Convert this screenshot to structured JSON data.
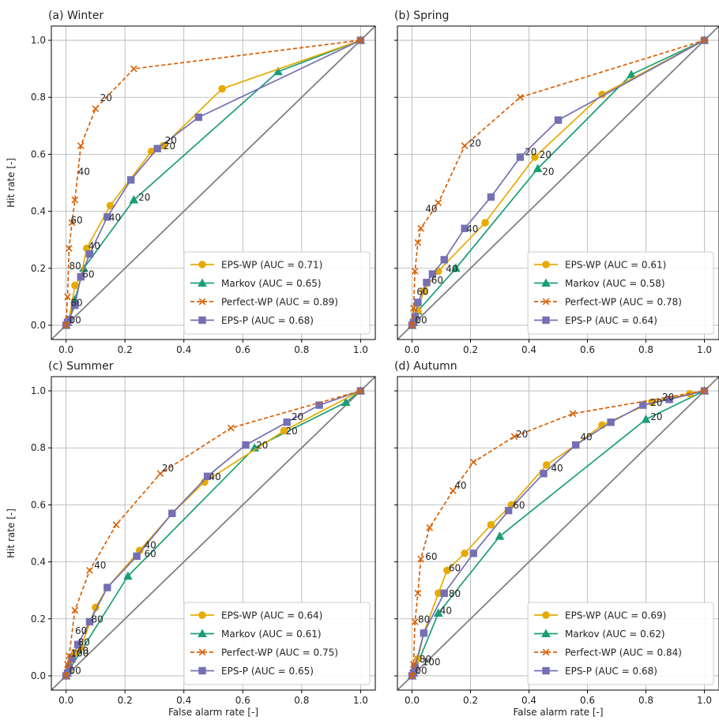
{
  "colors": {
    "EPS-WP": "#e6ab02",
    "Markov": "#1b9e77",
    "Perfect-WP": "#d95f02",
    "EPS-P": "#7570b3",
    "diagonal": "#808080",
    "grid": "#b0b0b0"
  },
  "chart_data": [
    {
      "type": "line",
      "title": "(a) Winter",
      "xlabel": "",
      "ylabel": "Hit rate [-]",
      "xlim": [
        -0.05,
        1.05
      ],
      "ylim": [
        -0.05,
        1.05
      ],
      "xticks": [
        "0.0",
        "0.2",
        "0.4",
        "0.6",
        "0.8",
        "1.0"
      ],
      "yticks": [
        "0.0",
        "0.2",
        "0.4",
        "0.6",
        "0.8",
        "1.0"
      ],
      "grid": true,
      "legend_position": "bottom-right",
      "series": [
        {
          "name": "EPS-WP (AUC = 0.71)",
          "marker": "circle",
          "x": [
            0,
            0.005,
            0.01,
            0.03,
            0.05,
            0.07,
            0.15,
            0.29,
            0.33,
            0.53,
            1.0
          ],
          "y": [
            0,
            0.01,
            0.02,
            0.14,
            0.17,
            0.27,
            0.42,
            0.61,
            0.63,
            0.83,
            1.0
          ]
        },
        {
          "name": "Markov (AUC = 0.65)",
          "marker": "triangle",
          "x": [
            0,
            0.005,
            0.01,
            0.03,
            0.06,
            0.23,
            0.72,
            1.0
          ],
          "y": [
            0,
            0.01,
            0.02,
            0.09,
            0.2,
            0.44,
            0.89,
            1.0
          ]
        },
        {
          "name": "Perfect-WP (AUC = 0.89)",
          "marker": "x",
          "dashed": true,
          "x": [
            0,
            0.005,
            0.01,
            0.02,
            0.03,
            0.05,
            0.1,
            0.23,
            1.0
          ],
          "y": [
            0,
            0.1,
            0.27,
            0.36,
            0.44,
            0.63,
            0.76,
            0.9,
            1.0
          ]
        },
        {
          "name": "EPS-P (AUC = 0.68)",
          "marker": "square",
          "x": [
            0,
            0.005,
            0.01,
            0.03,
            0.05,
            0.08,
            0.14,
            0.22,
            0.31,
            0.45,
            1.0
          ],
          "y": [
            0,
            0.01,
            0.02,
            0.07,
            0.17,
            0.25,
            0.38,
            0.51,
            0.62,
            0.73,
            1.0
          ]
        }
      ],
      "annotations": [
        {
          "text": "20",
          "x": 0.11,
          "y": 0.79
        },
        {
          "text": "40",
          "x": 0.035,
          "y": 0.53
        },
        {
          "text": "60",
          "x": 0.01,
          "y": 0.36
        },
        {
          "text": "80",
          "x": 0.005,
          "y": 0.2
        },
        {
          "text": "20",
          "x": 0.325,
          "y": 0.62
        },
        {
          "text": "20",
          "x": 0.33,
          "y": 0.64
        },
        {
          "text": "40",
          "x": 0.07,
          "y": 0.27
        },
        {
          "text": "60",
          "x": 0.05,
          "y": 0.17
        },
        {
          "text": "20",
          "x": 0.24,
          "y": 0.44
        },
        {
          "text": "40",
          "x": 0.14,
          "y": 0.37
        },
        {
          "text": "80",
          "x": 0.01,
          "y": 0.07
        },
        {
          "text": "00",
          "x": 0.005,
          "y": 0.01
        }
      ]
    },
    {
      "type": "line",
      "title": "(b) Spring",
      "xlabel": "",
      "ylabel": "",
      "xlim": [
        -0.05,
        1.05
      ],
      "ylim": [
        -0.05,
        1.05
      ],
      "xticks": [
        "0.0",
        "0.2",
        "0.4",
        "0.6",
        "0.8",
        "1.0"
      ],
      "yticks": [],
      "grid": true,
      "legend_position": "bottom-right",
      "series": [
        {
          "name": "EPS-WP (AUC = 0.61)",
          "marker": "circle",
          "x": [
            0,
            0.005,
            0.01,
            0.02,
            0.04,
            0.09,
            0.25,
            0.42,
            0.65,
            1.0
          ],
          "y": [
            0,
            0.01,
            0.02,
            0.05,
            0.12,
            0.19,
            0.36,
            0.59,
            0.81,
            1.0
          ]
        },
        {
          "name": "Markov (AUC = 0.58)",
          "marker": "triangle",
          "x": [
            0,
            0.005,
            0.01,
            0.02,
            0.15,
            0.43,
            0.75,
            1.0
          ],
          "y": [
            0,
            0.01,
            0.02,
            0.05,
            0.2,
            0.55,
            0.88,
            1.0
          ]
        },
        {
          "name": "Perfect-WP (AUC = 0.78)",
          "marker": "x",
          "dashed": true,
          "x": [
            0,
            0.005,
            0.01,
            0.02,
            0.03,
            0.09,
            0.18,
            0.37,
            1.0
          ],
          "y": [
            0,
            0.06,
            0.19,
            0.29,
            0.34,
            0.43,
            0.63,
            0.8,
            1.0
          ]
        },
        {
          "name": "EPS-P (AUC = 0.64)",
          "marker": "square",
          "x": [
            0,
            0.005,
            0.01,
            0.02,
            0.05,
            0.07,
            0.11,
            0.18,
            0.27,
            0.37,
            0.5,
            1.0
          ],
          "y": [
            0,
            0.01,
            0.03,
            0.08,
            0.15,
            0.18,
            0.23,
            0.34,
            0.45,
            0.59,
            0.72,
            1.0
          ]
        }
      ],
      "annotations": [
        {
          "text": "20",
          "x": 0.19,
          "y": 0.63
        },
        {
          "text": "40",
          "x": 0.04,
          "y": 0.4
        },
        {
          "text": "60",
          "x": 0.01,
          "y": 0.11
        },
        {
          "text": "20",
          "x": 0.38,
          "y": 0.6
        },
        {
          "text": "20",
          "x": 0.43,
          "y": 0.59
        },
        {
          "text": "20",
          "x": 0.44,
          "y": 0.53
        },
        {
          "text": "40",
          "x": 0.18,
          "y": 0.33
        },
        {
          "text": "40",
          "x": 0.11,
          "y": 0.19
        },
        {
          "text": "60",
          "x": 0.06,
          "y": 0.15
        },
        {
          "text": "00",
          "x": 0.005,
          "y": 0.01
        }
      ]
    },
    {
      "type": "line",
      "title": "(c) Summer",
      "xlabel": "False alarm rate [-]",
      "ylabel": "Hit rate [-]",
      "xlim": [
        -0.05,
        1.05
      ],
      "ylim": [
        -0.05,
        1.05
      ],
      "xticks": [
        "0.0",
        "0.2",
        "0.4",
        "0.6",
        "0.8",
        "1.0"
      ],
      "yticks": [
        "0.0",
        "0.2",
        "0.4",
        "0.6",
        "0.8",
        "1.0"
      ],
      "grid": true,
      "legend_position": "bottom-right",
      "series": [
        {
          "name": "EPS-WP (AUC = 0.64)",
          "marker": "circle",
          "x": [
            0,
            0.005,
            0.01,
            0.03,
            0.05,
            0.1,
            0.14,
            0.25,
            0.36,
            0.47,
            0.74,
            1.0
          ],
          "y": [
            0,
            0.01,
            0.02,
            0.08,
            0.1,
            0.24,
            0.31,
            0.44,
            0.57,
            0.68,
            0.86,
            1.0
          ]
        },
        {
          "name": "Markov (AUC = 0.61)",
          "marker": "triangle",
          "x": [
            0,
            0.005,
            0.01,
            0.21,
            0.64,
            0.95,
            1.0
          ],
          "y": [
            0,
            0.01,
            0.02,
            0.35,
            0.8,
            0.96,
            1.0
          ]
        },
        {
          "name": "Perfect-WP (AUC = 0.75)",
          "marker": "x",
          "dashed": true,
          "x": [
            0,
            0.005,
            0.01,
            0.03,
            0.08,
            0.17,
            0.32,
            0.56,
            1.0
          ],
          "y": [
            0,
            0.04,
            0.07,
            0.23,
            0.37,
            0.53,
            0.71,
            0.87,
            1.0
          ]
        },
        {
          "name": "EPS-P (AUC = 0.65)",
          "marker": "square",
          "x": [
            0,
            0.005,
            0.01,
            0.02,
            0.04,
            0.08,
            0.14,
            0.24,
            0.36,
            0.48,
            0.61,
            0.75,
            0.86,
            1.0
          ],
          "y": [
            0,
            0.01,
            0.03,
            0.06,
            0.11,
            0.19,
            0.31,
            0.42,
            0.57,
            0.7,
            0.81,
            0.89,
            0.95,
            1.0
          ]
        }
      ],
      "annotations": [
        {
          "text": "20",
          "x": 0.32,
          "y": 0.72
        },
        {
          "text": "40",
          "x": 0.09,
          "y": 0.38
        },
        {
          "text": "60",
          "x": 0.025,
          "y": 0.15
        },
        {
          "text": "100",
          "x": 0.01,
          "y": 0.07
        },
        {
          "text": "20",
          "x": 0.76,
          "y": 0.9
        },
        {
          "text": "20",
          "x": 0.74,
          "y": 0.85
        },
        {
          "text": "20",
          "x": 0.64,
          "y": 0.8
        },
        {
          "text": "40",
          "x": 0.48,
          "y": 0.69
        },
        {
          "text": "40",
          "x": 0.26,
          "y": 0.45
        },
        {
          "text": "60",
          "x": 0.26,
          "y": 0.42
        },
        {
          "text": "80",
          "x": 0.08,
          "y": 0.19
        },
        {
          "text": "80",
          "x": 0.035,
          "y": 0.11
        },
        {
          "text": "40",
          "x": 0.03,
          "y": 0.08
        },
        {
          "text": "00",
          "x": 0.005,
          "y": 0.01
        }
      ]
    },
    {
      "type": "line",
      "title": "(d) Autumn",
      "xlabel": "False alarm rate [-]",
      "ylabel": "",
      "xlim": [
        -0.05,
        1.05
      ],
      "ylim": [
        -0.05,
        1.05
      ],
      "xticks": [
        "0.0",
        "0.2",
        "0.4",
        "0.6",
        "0.8",
        "1.0"
      ],
      "yticks": [],
      "grid": true,
      "legend_position": "bottom-right",
      "series": [
        {
          "name": "EPS-WP (AUC = 0.69)",
          "marker": "circle",
          "x": [
            0,
            0.005,
            0.01,
            0.02,
            0.04,
            0.09,
            0.12,
            0.18,
            0.27,
            0.34,
            0.46,
            0.56,
            0.65,
            0.82,
            0.95,
            1.0
          ],
          "y": [
            0,
            0.01,
            0.02,
            0.06,
            0.15,
            0.29,
            0.37,
            0.43,
            0.53,
            0.6,
            0.74,
            0.81,
            0.88,
            0.96,
            0.99,
            1.0
          ]
        },
        {
          "name": "Markov (AUC = 0.62)",
          "marker": "triangle",
          "x": [
            0,
            0.005,
            0.01,
            0.09,
            0.3,
            0.8,
            1.0
          ],
          "y": [
            0,
            0.01,
            0.02,
            0.22,
            0.49,
            0.9,
            1.0
          ]
        },
        {
          "name": "Perfect-WP (AUC = 0.84)",
          "marker": "x",
          "dashed": true,
          "x": [
            0,
            0.005,
            0.01,
            0.02,
            0.03,
            0.06,
            0.14,
            0.21,
            0.35,
            0.55,
            1.0
          ],
          "y": [
            0,
            0.04,
            0.19,
            0.29,
            0.41,
            0.52,
            0.65,
            0.75,
            0.84,
            0.92,
            1.0
          ]
        },
        {
          "name": "EPS-P (AUC = 0.68)",
          "marker": "square",
          "x": [
            0,
            0.005,
            0.01,
            0.04,
            0.11,
            0.21,
            0.33,
            0.45,
            0.56,
            0.68,
            0.79,
            0.88,
            1.0
          ],
          "y": [
            0,
            0.01,
            0.03,
            0.15,
            0.29,
            0.43,
            0.58,
            0.71,
            0.81,
            0.89,
            0.95,
            0.97,
            1.0
          ]
        }
      ],
      "annotations": [
        {
          "text": "20",
          "x": 0.35,
          "y": 0.84
        },
        {
          "text": "40",
          "x": 0.14,
          "y": 0.66
        },
        {
          "text": "60",
          "x": 0.04,
          "y": 0.41
        },
        {
          "text": "80",
          "x": 0.015,
          "y": 0.19
        },
        {
          "text": "20",
          "x": 0.81,
          "y": 0.95
        },
        {
          "text": "20",
          "x": 0.85,
          "y": 0.97
        },
        {
          "text": "20",
          "x": 0.81,
          "y": 0.9
        },
        {
          "text": "40",
          "x": 0.57,
          "y": 0.83
        },
        {
          "text": "40",
          "x": 0.47,
          "y": 0.72
        },
        {
          "text": "60",
          "x": 0.34,
          "y": 0.59
        },
        {
          "text": "60",
          "x": 0.12,
          "y": 0.37
        },
        {
          "text": "80",
          "x": 0.12,
          "y": 0.28
        },
        {
          "text": "40",
          "x": 0.09,
          "y": 0.22
        },
        {
          "text": "80",
          "x": 0.02,
          "y": 0.05
        },
        {
          "text": "100",
          "x": 0.03,
          "y": 0.04
        },
        {
          "text": "00",
          "x": 0.005,
          "y": 0.01
        }
      ]
    }
  ]
}
